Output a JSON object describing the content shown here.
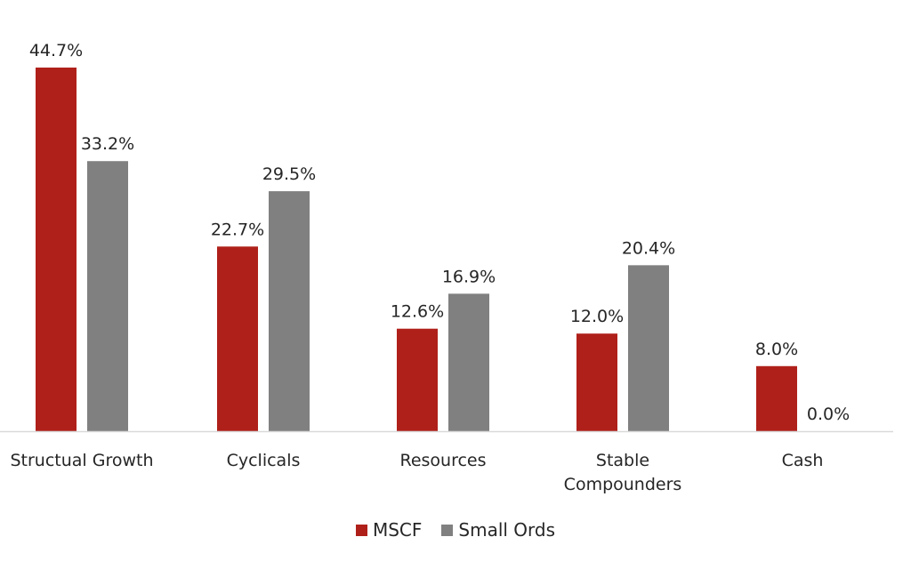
{
  "chart_data": {
    "type": "bar",
    "categories": [
      [
        "Structual Growth"
      ],
      [
        "Cyclicals"
      ],
      [
        "Resources"
      ],
      [
        "Stable",
        "Compounders"
      ],
      [
        "Cash"
      ]
    ],
    "series": [
      {
        "name": "MSCF",
        "color": "#b0201a",
        "values": [
          44.7,
          22.7,
          12.6,
          12.0,
          8.0
        ],
        "labels": [
          "44.7%",
          "22.7%",
          "12.6%",
          "12.0%",
          "8.0%"
        ]
      },
      {
        "name": "Small Ords",
        "color": "#808080",
        "values": [
          33.2,
          29.5,
          16.9,
          20.4,
          0.0
        ],
        "labels": [
          "33.2%",
          "29.5%",
          "16.9%",
          "20.4%",
          "0.0%"
        ]
      }
    ],
    "ylim": [
      0,
      50
    ],
    "grid": false,
    "legend_position": "bottom"
  }
}
